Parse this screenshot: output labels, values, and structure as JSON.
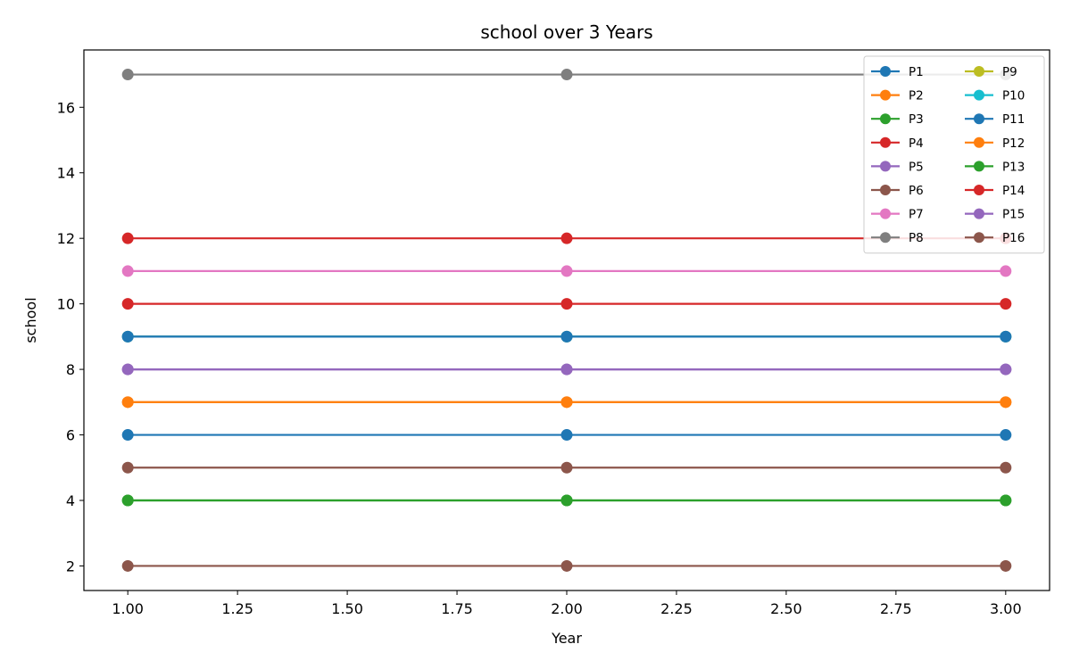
{
  "chart_data": {
    "type": "line",
    "title": "school over 3 Years",
    "xlabel": "Year",
    "ylabel": "school",
    "x": [
      1,
      2,
      3
    ],
    "xlim": [
      0.9,
      3.1
    ],
    "ylim": [
      1.25,
      17.75
    ],
    "xticks": [
      1.0,
      1.25,
      1.5,
      1.75,
      2.0,
      2.25,
      2.5,
      2.75,
      3.0
    ],
    "xtick_labels": [
      "1.00",
      "1.25",
      "1.50",
      "1.75",
      "2.00",
      "2.25",
      "2.50",
      "2.75",
      "3.00"
    ],
    "yticks": [
      2,
      4,
      6,
      8,
      10,
      12,
      14,
      16
    ],
    "ytick_labels": [
      "2",
      "4",
      "6",
      "8",
      "10",
      "12",
      "14",
      "16"
    ],
    "grid": false,
    "legend_position": "top-right",
    "legend_columns": 2,
    "series": [
      {
        "name": "P1",
        "color": "#1f77b4",
        "values": [
          6,
          6,
          6
        ]
      },
      {
        "name": "P2",
        "color": "#ff7f0e",
        "values": [
          7,
          7,
          7
        ]
      },
      {
        "name": "P3",
        "color": "#2ca02c",
        "values": [
          4,
          4,
          4
        ]
      },
      {
        "name": "P4",
        "color": "#d62728",
        "values": [
          12,
          12,
          12
        ]
      },
      {
        "name": "P5",
        "color": "#9467bd",
        "values": [
          8,
          8,
          8
        ]
      },
      {
        "name": "P6",
        "color": "#8c564b",
        "values": [
          2,
          2,
          2
        ]
      },
      {
        "name": "P7",
        "color": "#e377c2",
        "values": [
          11,
          11,
          11
        ]
      },
      {
        "name": "P8",
        "color": "#7f7f7f",
        "values": [
          17,
          17,
          17
        ]
      },
      {
        "name": "P9",
        "color": "#bcbd22",
        "values": [
          9,
          9,
          9
        ]
      },
      {
        "name": "P10",
        "color": "#17becf",
        "values": [
          9,
          9,
          9
        ]
      },
      {
        "name": "P11",
        "color": "#1f77b4",
        "values": [
          9,
          9,
          9
        ]
      },
      {
        "name": "P12",
        "color": "#ff7f0e",
        "values": [
          7,
          7,
          7
        ]
      },
      {
        "name": "P13",
        "color": "#2ca02c",
        "values": [
          4,
          4,
          4
        ]
      },
      {
        "name": "P14",
        "color": "#d62728",
        "values": [
          10,
          10,
          10
        ]
      },
      {
        "name": "P15",
        "color": "#9467bd",
        "values": [
          8,
          8,
          8
        ]
      },
      {
        "name": "P16",
        "color": "#8c564b",
        "values": [
          5,
          5,
          5
        ]
      }
    ]
  }
}
